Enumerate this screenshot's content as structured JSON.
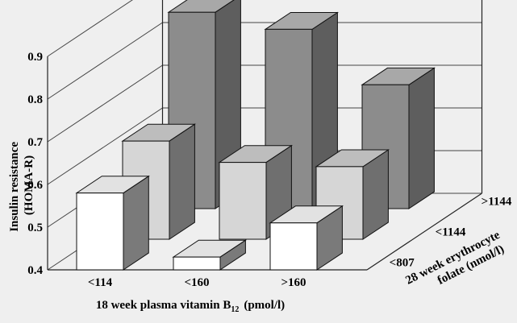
{
  "chart_data": {
    "type": "bar",
    "subtype": "3d-grouped",
    "categories": [
      "<114",
      "<160",
      ">160"
    ],
    "series": [
      {
        "name": "<807",
        "values": [
          0.58,
          0.43,
          0.51
        ]
      },
      {
        "name": "<1144",
        "values": [
          0.63,
          0.58,
          0.57
        ]
      },
      {
        "name": ">1144",
        "values": [
          0.86,
          0.82,
          0.69
        ]
      }
    ],
    "xlabel": "18 week plasma vitamin B12 (pmol/l)",
    "xlabel_main": "18 week plasma vitamin B",
    "xlabel_sub": "12",
    "xlabel_unit": "(pmol/l)",
    "ylabel_line1": "Insulin resistance",
    "ylabel_line2": "(HOMA-R)",
    "zlabel_line1": "28 week erythrocyte",
    "zlabel_line2": "folate (nmol/l)",
    "y_ticks": [
      "0.4",
      "0.5",
      "0.6",
      "0.7",
      "0.8",
      "0.9"
    ],
    "ylim": [
      0.4,
      0.9
    ],
    "grid": true,
    "colors": {
      "front_face": [
        "#ffffff",
        "#d6d6d6",
        "#8c8c8c"
      ],
      "top_face": [
        "#e2e2e2",
        "#bdbdbd",
        "#a8a8a8"
      ],
      "side_face": [
        "#7a7a7a",
        "#6f6f6f",
        "#5e5e5e"
      ],
      "background": "#efefef"
    }
  }
}
